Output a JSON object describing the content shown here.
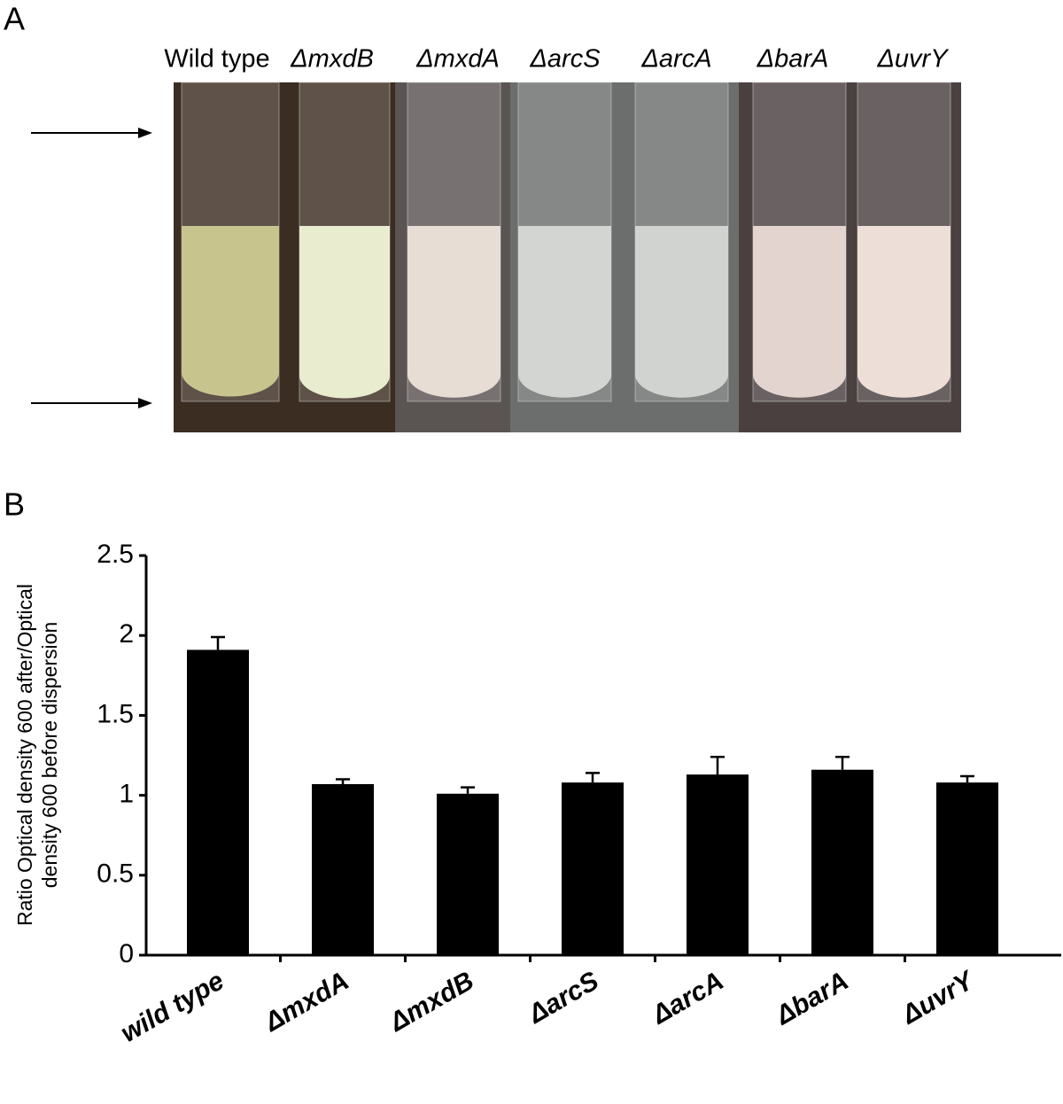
{
  "panel_a": {
    "label": "A",
    "tube_labels": [
      "Wild type",
      "ΔmxdB",
      "ΔmxdA",
      "ΔarcS",
      "ΔarcA",
      "ΔbarA",
      "ΔuvrY"
    ]
  },
  "chart_data": {
    "type": "bar",
    "panel_label": "B",
    "ylabel": [
      "Ratio Optical density 600 after/Optical",
      "density 600 before dispersion"
    ],
    "categories": [
      "wild type",
      "ΔmxdA",
      "ΔmxdB",
      "ΔarcS",
      "ΔarcA",
      "ΔbarA",
      "ΔuvrY"
    ],
    "values": [
      1.91,
      1.07,
      1.01,
      1.08,
      1.13,
      1.16,
      1.08
    ],
    "errors": [
      0.08,
      0.03,
      0.04,
      0.06,
      0.11,
      0.08,
      0.04
    ],
    "color": "#000000",
    "ylim": [
      0,
      2.5
    ],
    "yticks": [
      0,
      0.5,
      1,
      1.5,
      2,
      2.5
    ],
    "grid": false
  }
}
